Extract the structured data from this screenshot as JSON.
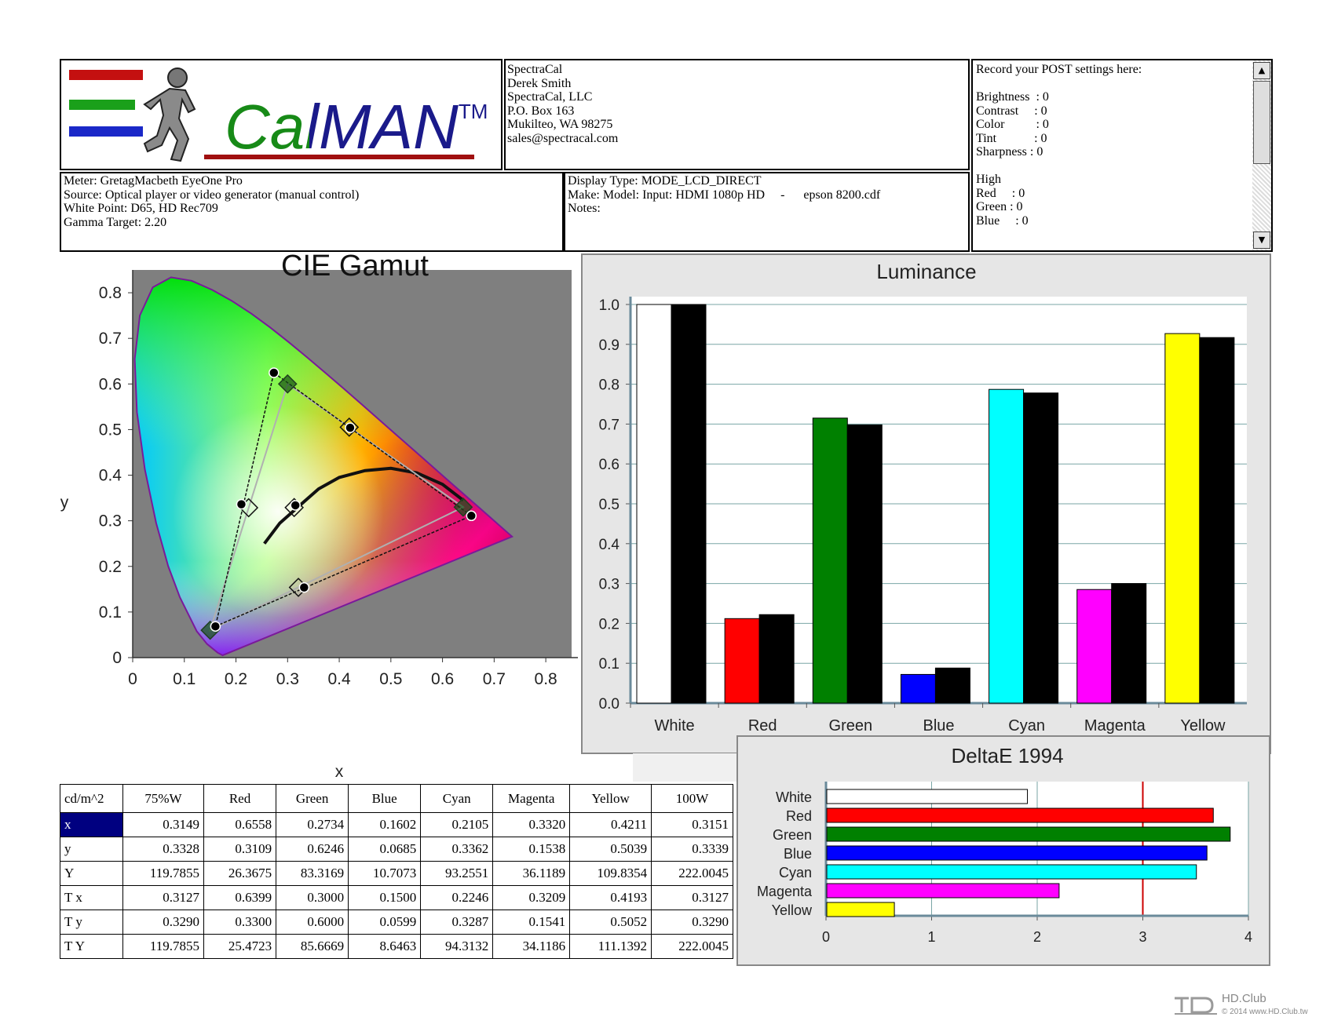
{
  "logo": {
    "brand": "CalMAN",
    "trademark": "TM"
  },
  "contact": {
    "lines": [
      "SpectraCal",
      "Derek Smith",
      "SpectraCal, LLC",
      "P.O. Box 163",
      "Mukilteo, WA 98275",
      "sales@spectracal.com"
    ]
  },
  "meter_info": {
    "lines": [
      "Meter: GretagMacbeth EyeOne Pro",
      "Source: Optical player or video generator (manual control)",
      "White Point: D65, HD Rec709",
      "Gamma Target: 2.20"
    ]
  },
  "display_info": {
    "lines": [
      "Display Type: MODE_LCD_DIRECT",
      "Make: Model: Input: HDMI 1080p HD     -      epson 8200.cdf",
      "Notes:"
    ]
  },
  "post_settings": {
    "lines": [
      "Record your POST settings here:",
      "",
      "Brightness  : 0",
      "Contrast     : 0",
      "Color          : 0",
      "Tint            : 0",
      "Sharpness : 0",
      "",
      "High",
      "Red     : 0",
      "Green : 0",
      "Blue     : 0"
    ],
    "scroll_up": "▲",
    "scroll_down": "▼"
  },
  "colors": {
    "white": "#ffffff",
    "red": "#ff0000",
    "green": "#008000",
    "blue": "#0000ff",
    "cyan": "#00ffff",
    "magenta": "#ff00ff",
    "yellow": "#ffff00",
    "measured": "#000000",
    "target_line": "#cc0000"
  },
  "chart_data": [
    {
      "type": "scatter",
      "title": "CIE Gamut",
      "xlabel": "x",
      "ylabel": "y",
      "xlim": [
        0,
        0.85
      ],
      "ylim": [
        0,
        0.85
      ],
      "xticks": [
        "0",
        "0.1",
        "0.2",
        "0.3",
        "0.4",
        "0.5",
        "0.6",
        "0.7",
        "0.8"
      ],
      "yticks": [
        "0",
        "0.1",
        "0.2",
        "0.3",
        "0.4",
        "0.5",
        "0.6",
        "0.7",
        "0.8"
      ],
      "series": [
        {
          "points": [
            {
              "x": 0.6558,
              "y": 0.3109
            },
            {
              "x": 0.2734,
              "y": 0.6246
            },
            {
              "x": 0.1602,
              "y": 0.0685
            },
            {
              "x": 0.2105,
              "y": 0.3362
            },
            {
              "x": 0.332,
              "y": 0.1538
            },
            {
              "x": 0.4211,
              "y": 0.5039
            },
            {
              "x": 0.3151,
              "y": 0.3339
            }
          ]
        },
        {
          "points": [
            {
              "x": 0.64,
              "y": 0.33
            },
            {
              "x": 0.3,
              "y": 0.6
            },
            {
              "x": 0.15,
              "y": 0.06
            },
            {
              "x": 0.2246,
              "y": 0.3287
            },
            {
              "x": 0.3209,
              "y": 0.1541
            },
            {
              "x": 0.4193,
              "y": 0.5052
            },
            {
              "x": 0.3127,
              "y": 0.329
            }
          ]
        }
      ]
    },
    {
      "type": "bar",
      "title": "Luminance",
      "categories": [
        "White",
        "Red",
        "Green",
        "Blue",
        "Cyan",
        "Magenta",
        "Yellow"
      ],
      "ylim": [
        0,
        1.0
      ],
      "yticks": [
        "0.0",
        "0.1",
        "0.2",
        "0.3",
        "0.4",
        "0.5",
        "0.6",
        "0.7",
        "0.8",
        "0.9",
        "1.0"
      ],
      "series": [
        {
          "values": [
            1.0,
            0.212,
            0.715,
            0.072,
            0.787,
            0.285,
            0.927
          ]
        },
        {
          "values": [
            1.0,
            0.222,
            0.698,
            0.088,
            0.778,
            0.3,
            0.917
          ]
        }
      ],
      "grid": true
    },
    {
      "type": "bar",
      "orientation": "horizontal",
      "title": "DeltaE 1994",
      "categories": [
        "White",
        "Red",
        "Green",
        "Blue",
        "Cyan",
        "Magenta",
        "Yellow"
      ],
      "values": [
        1.9,
        3.66,
        3.82,
        3.6,
        3.5,
        2.2,
        0.64
      ],
      "xlim": [
        0,
        4
      ],
      "xticks": [
        "0",
        "1",
        "2",
        "3",
        "4"
      ],
      "threshold": 3,
      "grid": true
    }
  ],
  "table": {
    "unit_label": "cd/m^2",
    "columns": [
      "75%W",
      "Red",
      "Green",
      "Blue",
      "Cyan",
      "Magenta",
      "Yellow",
      "100W"
    ],
    "rows": [
      {
        "label": "x",
        "values": [
          "0.3149",
          "0.6558",
          "0.2734",
          "0.1602",
          "0.2105",
          "0.3320",
          "0.4211",
          "0.3151"
        ]
      },
      {
        "label": "y",
        "values": [
          "0.3328",
          "0.3109",
          "0.6246",
          "0.0685",
          "0.3362",
          "0.1538",
          "0.5039",
          "0.3339"
        ]
      },
      {
        "label": "Y",
        "values": [
          "119.7855",
          "26.3675",
          "83.3169",
          "10.7073",
          "93.2551",
          "36.1189",
          "109.8354",
          "222.0045"
        ]
      },
      {
        "label": "T x",
        "values": [
          "0.3127",
          "0.6399",
          "0.3000",
          "0.1500",
          "0.2246",
          "0.3209",
          "0.4193",
          "0.3127"
        ]
      },
      {
        "label": "T y",
        "values": [
          "0.3290",
          "0.3300",
          "0.6000",
          "0.0599",
          "0.3287",
          "0.1541",
          "0.5052",
          "0.3290"
        ]
      },
      {
        "label": "T Y",
        "values": [
          "119.7855",
          "25.4723",
          "85.6669",
          "8.6463",
          "94.3132",
          "34.1186",
          "111.1392",
          "222.0045"
        ]
      }
    ]
  },
  "watermark": {
    "name": "HD.Club",
    "sub": "© 2014 www.HD.Club.tw"
  }
}
